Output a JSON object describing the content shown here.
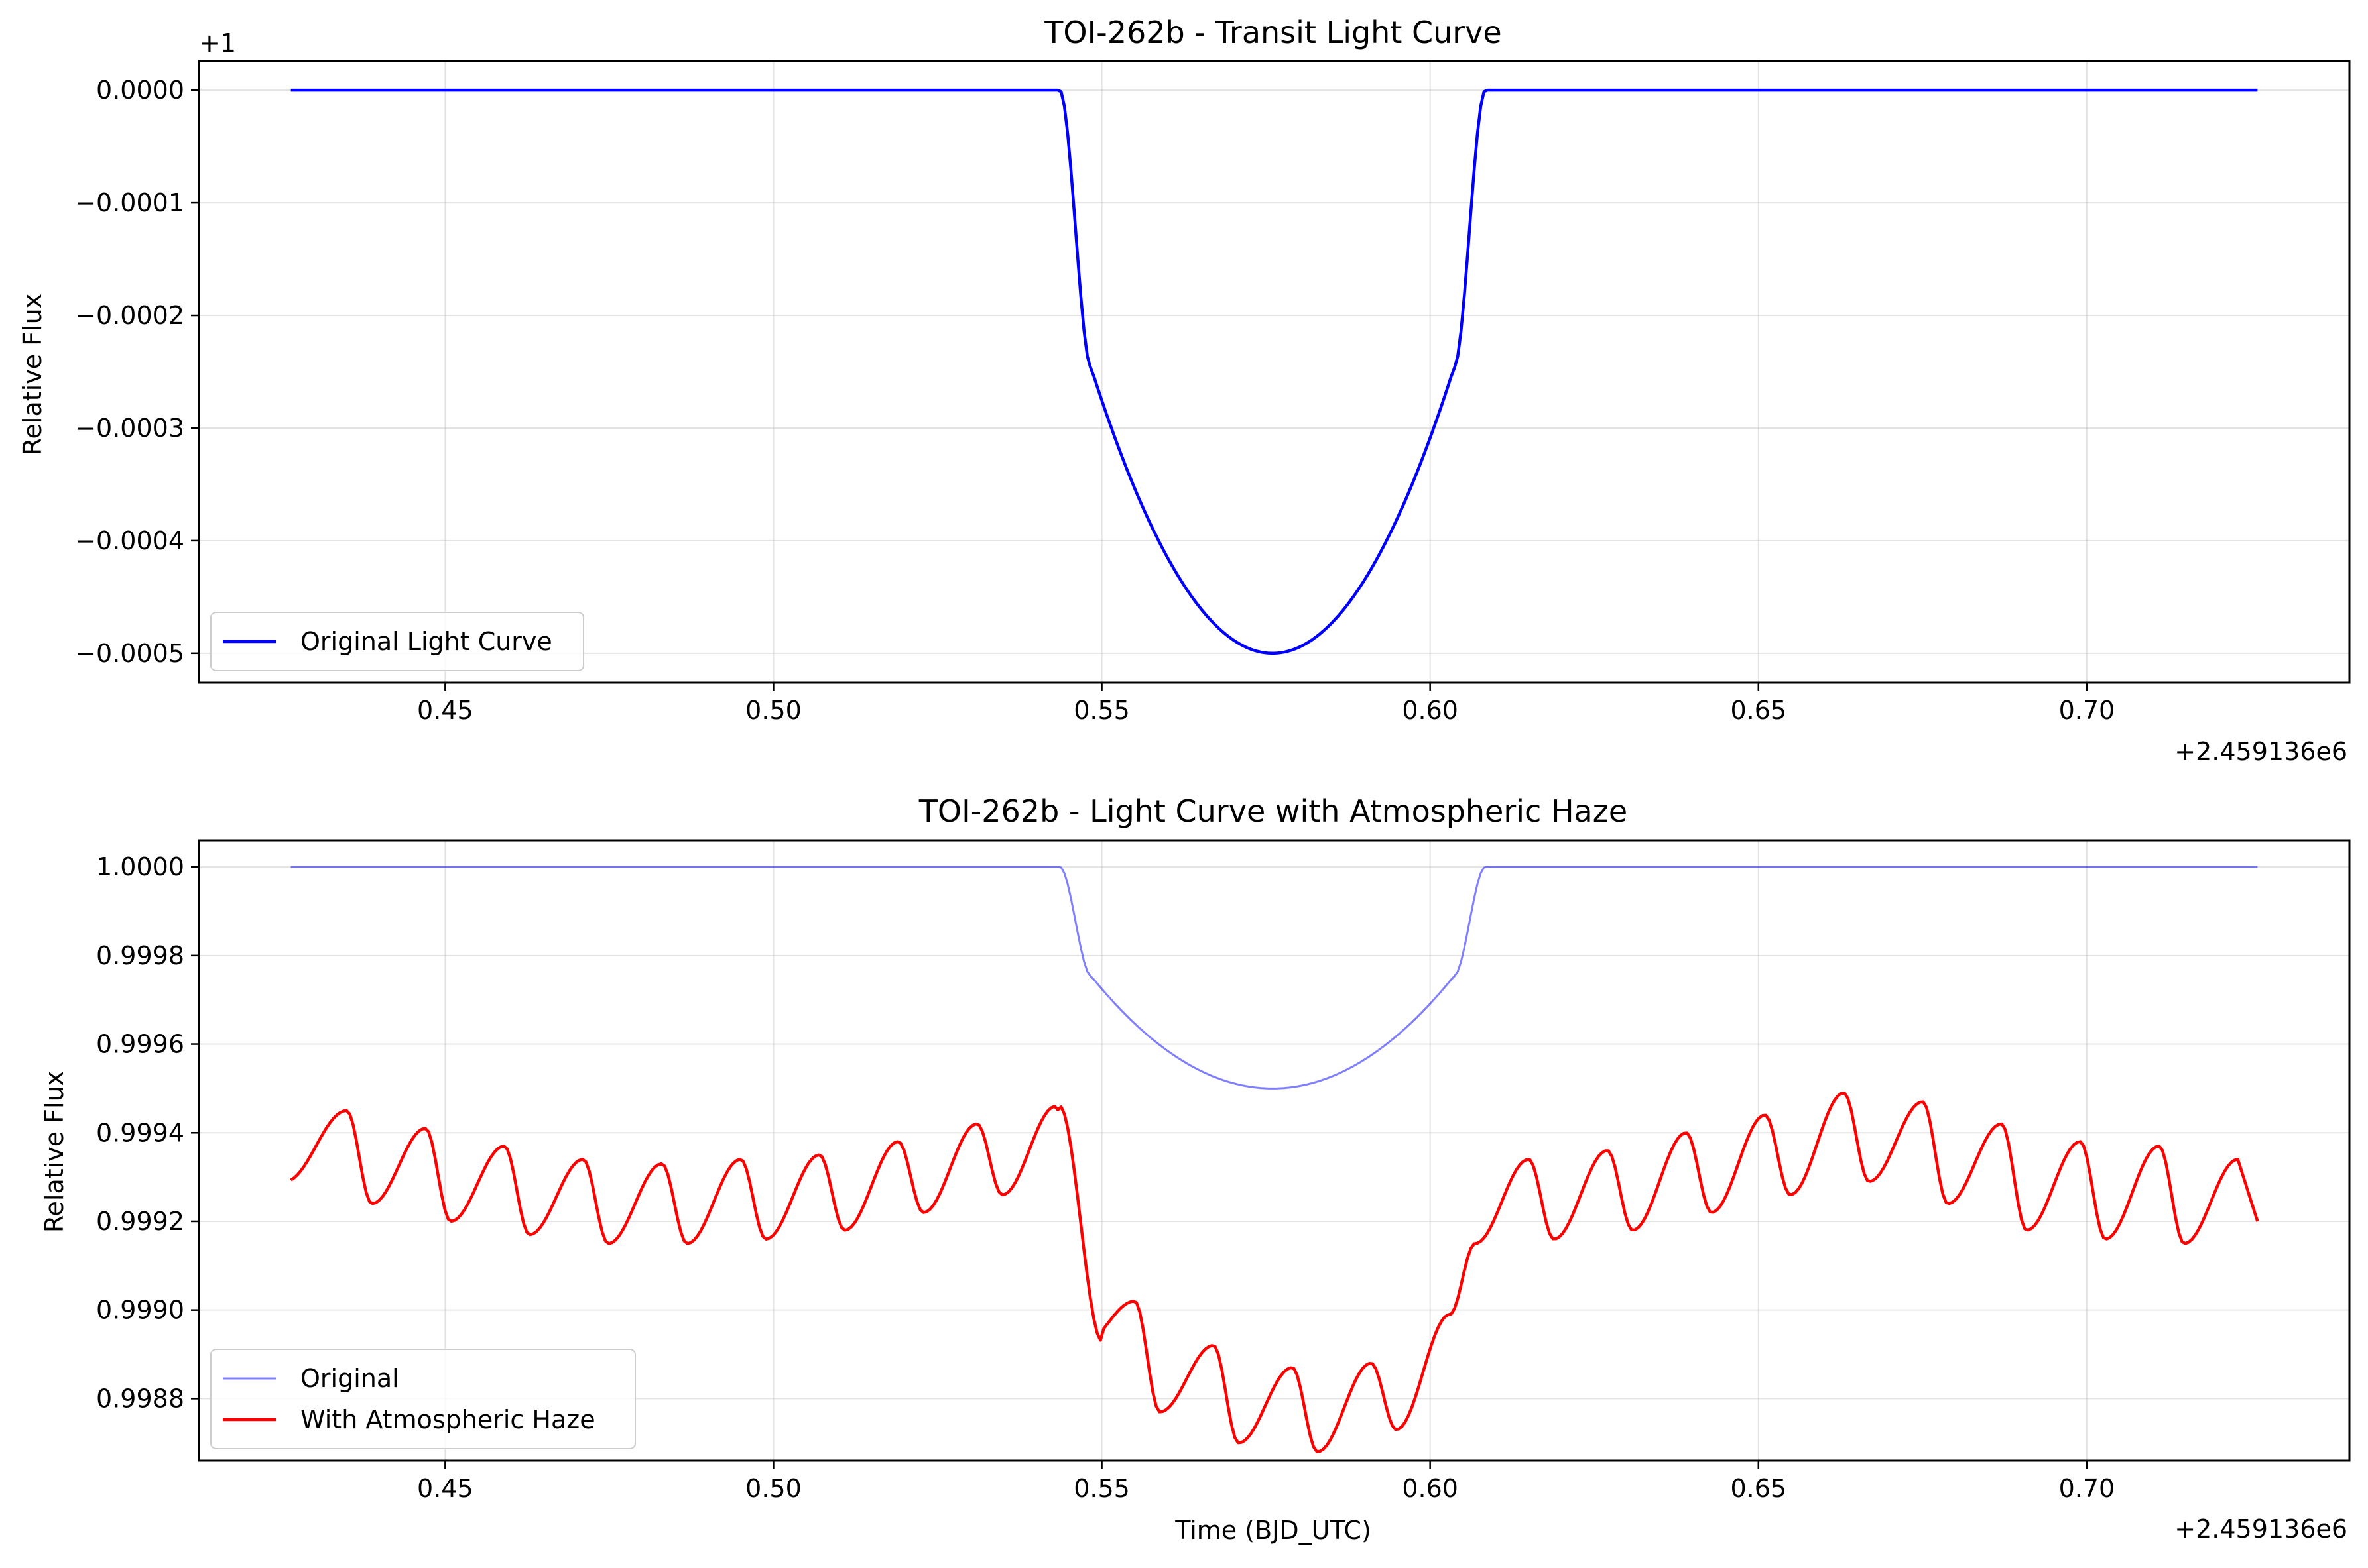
{
  "figure": {
    "background": "#ffffff"
  },
  "chart_data": [
    {
      "type": "line",
      "title": "TOI-262b - Transit Light Curve",
      "xlabel": "",
      "ylabel": "Relative Flux",
      "x_offset_text": "+2.459136e6",
      "y_offset_text": "+1",
      "xlim": [
        0.4125,
        0.74
      ],
      "ylim": [
        -0.000526,
        2.6e-05
      ],
      "grid": true,
      "legend_placement": "lower-left",
      "xticks": [
        0.45,
        0.5,
        0.55,
        0.6,
        0.65,
        0.7
      ],
      "xtick_labels": [
        "0.45",
        "0.50",
        "0.55",
        "0.60",
        "0.65",
        "0.70"
      ],
      "yticks": [
        0.0,
        -0.0001,
        -0.0002,
        -0.0003,
        -0.0004,
        -0.0005
      ],
      "ytick_labels": [
        "0.0000",
        "−0.0001",
        "−0.0002",
        "−0.0003",
        "−0.0004",
        "−0.0005"
      ],
      "series": [
        {
          "name": "Original Light Curve",
          "color": "#0000ff",
          "model": {
            "x_start": 0.4265,
            "x_end": 0.726,
            "ingress_start": 0.5436,
            "ingress_end": 0.5484,
            "egress_start": 0.6036,
            "egress_end": 0.6084,
            "center": 0.576,
            "depth": 0.0005,
            "baseline": 0.0
          }
        }
      ]
    },
    {
      "type": "line",
      "title": "TOI-262b - Light Curve with Atmospheric Haze",
      "xlabel": "Time (BJD_UTC)",
      "ylabel": "Relative Flux",
      "x_offset_text": "+2.459136e6",
      "xlim": [
        0.4125,
        0.74
      ],
      "ylim": [
        0.99866,
        1.00006
      ],
      "grid": true,
      "legend_placement": "lower-left",
      "xticks": [
        0.45,
        0.5,
        0.55,
        0.6,
        0.65,
        0.7
      ],
      "xtick_labels": [
        "0.45",
        "0.50",
        "0.55",
        "0.60",
        "0.65",
        "0.70"
      ],
      "yticks": [
        1.0,
        0.9998,
        0.9996,
        0.9994,
        0.9992,
        0.999,
        0.9988
      ],
      "ytick_labels": [
        "1.0000",
        "0.9998",
        "0.9996",
        "0.9994",
        "0.9992",
        "0.9990",
        "0.9988"
      ],
      "series": [
        {
          "name": "Original",
          "color": "#0000ff",
          "opacity": 0.5,
          "model": {
            "x_start": 0.4265,
            "x_end": 0.726,
            "ingress_start": 0.5436,
            "ingress_end": 0.5484,
            "egress_start": 0.6036,
            "egress_end": 0.6084,
            "center": 0.576,
            "depth": 0.0005,
            "baseline": 1.0
          }
        },
        {
          "name": "With Atmospheric Haze",
          "color": "#ff0000",
          "model": {
            "x_start": 0.4265,
            "x_end": 0.726,
            "baseline_left_start": 0.99937,
            "baseline_left_end": 0.99932,
            "baseline_right_start": 0.99928,
            "baseline_right_end": 0.99936,
            "baseline_mid": 0.99925,
            "transit_depth": 0.0005,
            "haze_offset": 0.0007,
            "oscillation_amplitude": 0.00018,
            "oscillation_period": 0.012,
            "peaks": [
              0.435,
              0.447,
              0.459,
              0.471,
              0.483,
              0.495,
              0.507,
              0.519,
              0.531,
              0.543,
              0.555,
              0.567,
              0.579,
              0.591,
              0.603,
              0.615,
              0.627,
              0.639,
              0.651,
              0.663,
              0.675,
              0.687,
              0.699,
              0.711,
              0.723
            ],
            "peak_values": [
              0.99945,
              0.99941,
              0.99937,
              0.99934,
              0.99933,
              0.99934,
              0.99935,
              0.99938,
              0.99942,
              0.99946,
              0.99902,
              0.99892,
              0.99887,
              0.99888,
              0.99899,
              0.99934,
              0.99936,
              0.9994,
              0.99944,
              0.99949,
              0.99947,
              0.99942,
              0.99938,
              0.99937,
              0.99934
            ],
            "trough_values": [
              0.99929,
              0.99924,
              0.9992,
              0.99917,
              0.99915,
              0.99915,
              0.99916,
              0.99918,
              0.99922,
              0.99926,
              0.99892,
              0.99877,
              0.9987,
              0.99868,
              0.99873,
              0.99915,
              0.99916,
              0.99918,
              0.99922,
              0.99926,
              0.99929,
              0.99924,
              0.99918,
              0.99916,
              0.99915
            ]
          }
        }
      ]
    }
  ]
}
